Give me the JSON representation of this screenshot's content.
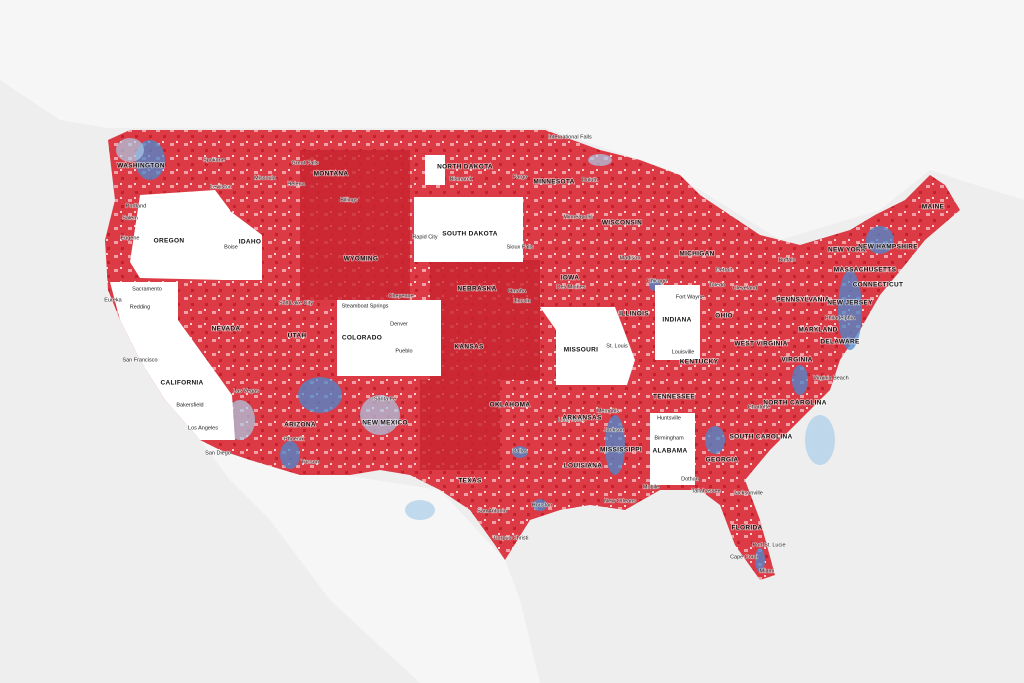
{
  "states": [
    "WASHINGTON",
    "MONTANA",
    "NORTH DAKOTA",
    "MINNESOTA",
    "OREGON",
    "IDAHO",
    "WYOMING",
    "SOUTH DAKOTA",
    "WISCONSIN",
    "MICHIGAN",
    "NEW YORK",
    "NEW HAMPSHIRE",
    "MAINE",
    "MASSACHUSETTS",
    "CONNECTICUT",
    "IOWA",
    "NEBRASKA",
    "NEVADA",
    "UTAH",
    "COLORADO",
    "ILLINOIS",
    "INDIANA",
    "OHIO",
    "PENNSYLVANIA",
    "NEW JERSEY",
    "MARYLAND",
    "DELAWARE",
    "KANSAS",
    "MISSOURI",
    "WEST VIRGINIA",
    "KENTUCKY",
    "VIRGINIA",
    "CALIFORNIA",
    "TENNESSEE",
    "NORTH CAROLINA",
    "OKLAHOMA",
    "ARKANSAS",
    "NEW MEXICO",
    "ARIZONA",
    "SOUTH CAROLINA",
    "ALABAMA",
    "MISSISSIPPI",
    "GEORGIA",
    "LOUISIANA",
    "TEXAS",
    "FLORIDA"
  ],
  "cities": [
    "Spokane",
    "Great Falls",
    "Missoula",
    "Helena",
    "Bismarck",
    "Fargo",
    "Duluth",
    "International Falls",
    "Portland",
    "Salem",
    "Eugene",
    "Lewiston",
    "Billings",
    "Boise",
    "Rapid City",
    "Sioux Falls",
    "Minneapolis",
    "Madison",
    "Chicago",
    "Detroit",
    "Fort Wayne",
    "Toledo",
    "Cleveland",
    "Buffalo",
    "Des Moines",
    "Omaha",
    "Lincoln",
    "Cheyenne",
    "Salt Lake City",
    "Eureka",
    "Redding",
    "Sacramento",
    "San Francisco",
    "Steamboat Springs",
    "Denver",
    "Pueblo",
    "Las Vegas",
    "Santa Fe",
    "Phoenix",
    "Tucson",
    "Los Angeles",
    "Bakersfield",
    "San Diego",
    "St. Louis",
    "Louisville",
    "Memphis",
    "Little Rock",
    "Huntsville",
    "Birmingham",
    "Dallas",
    "Houston",
    "San Antonio",
    "Corpus Christi",
    "New Orleans",
    "Mobile",
    "Jackson",
    "Dothan",
    "Tallahassee",
    "Jacksonville",
    "Charlotte",
    "Philadelphia",
    "Virginia Beach",
    "Port St. Lucie",
    "Cape Coral",
    "Miami"
  ]
}
